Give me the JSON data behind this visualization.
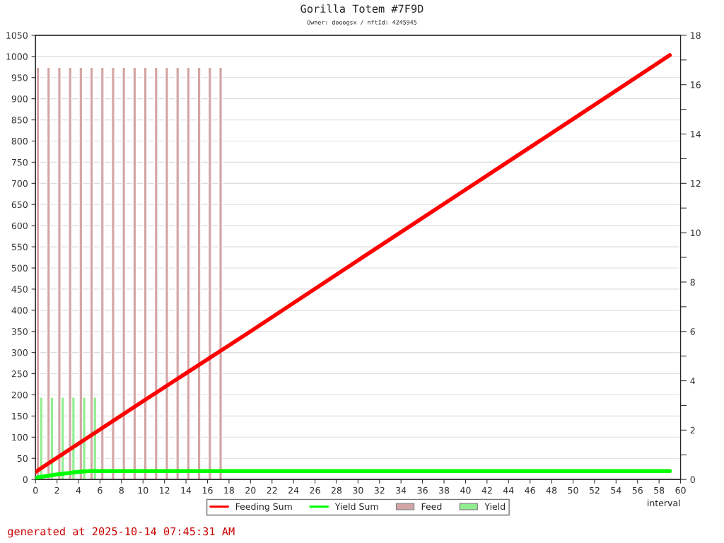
{
  "chart_data": {
    "type": "line",
    "title": "Gorilla Totem #7F9D",
    "subtitle": "Owner: dooogsx / nftId: 4245945",
    "xlabel": "interval",
    "annotations": [
      "generated at 2025-10-14 07:45:31 AM"
    ],
    "xlim": [
      0,
      60
    ],
    "xticks": [
      0,
      2,
      4,
      6,
      8,
      10,
      12,
      14,
      16,
      18,
      20,
      22,
      24,
      26,
      28,
      30,
      32,
      34,
      36,
      38,
      40,
      42,
      44,
      46,
      48,
      50,
      52,
      54,
      56,
      58,
      60
    ],
    "ylim": [
      0,
      1050
    ],
    "yticks": [
      0,
      50,
      100,
      150,
      200,
      250,
      300,
      350,
      400,
      450,
      500,
      550,
      600,
      650,
      700,
      750,
      800,
      850,
      900,
      950,
      1000,
      1050
    ],
    "y2lim": [
      0,
      18
    ],
    "y2ticks": [
      0,
      {
        "value": 1,
        "label": null
      },
      2,
      {
        "value": 3,
        "label": null
      },
      4,
      {
        "value": 5,
        "label": null
      },
      6,
      {
        "value": 7,
        "label": null
      },
      8,
      {
        "value": 9,
        "label": null
      },
      10,
      {
        "value": 11,
        "label": null
      },
      12,
      {
        "value": 13,
        "label": null
      },
      14,
      {
        "value": 15,
        "label": null
      },
      16,
      {
        "value": 17,
        "label": null
      },
      18
    ],
    "grid": "y",
    "legend": "bottom",
    "series": [
      {
        "name": "Feeding Sum",
        "color": "#ff0000",
        "x": [
          0,
          10,
          20,
          30,
          40,
          50,
          59
        ],
        "values": [
          18,
          185,
          350,
          518,
          685,
          852,
          1003
        ]
      },
      {
        "name": "Yield Sum",
        "color": "#00ff00",
        "x": [
          0,
          1,
          2,
          3,
          4,
          5,
          59
        ],
        "values": [
          4,
          8,
          12,
          15,
          18,
          20,
          20
        ]
      },
      {
        "name": "Feed",
        "type": "bar",
        "axis": "y2",
        "color": "#d4a5a5",
        "x": [
          0.22,
          1.22,
          2.22,
          3.22,
          4.22,
          5.22,
          6.22,
          7.22,
          8.22,
          9.22,
          10.22,
          11.22,
          12.22,
          13.22,
          14.22,
          15.22,
          16.22,
          17.22
        ],
        "values": [
          16.7,
          16.7,
          16.7,
          16.7,
          16.7,
          16.7,
          16.7,
          16.7,
          16.7,
          16.7,
          16.7,
          16.7,
          16.7,
          16.7,
          16.7,
          16.7,
          16.7,
          16.7
        ]
      },
      {
        "name": "Yield",
        "type": "bar",
        "axis": "y2",
        "color": "#90ee90",
        "x": [
          0.53,
          1.53,
          2.53,
          3.53,
          4.53,
          5.53
        ],
        "values": [
          3.33,
          3.33,
          3.33,
          3.33,
          3.33,
          3.33
        ]
      }
    ]
  }
}
